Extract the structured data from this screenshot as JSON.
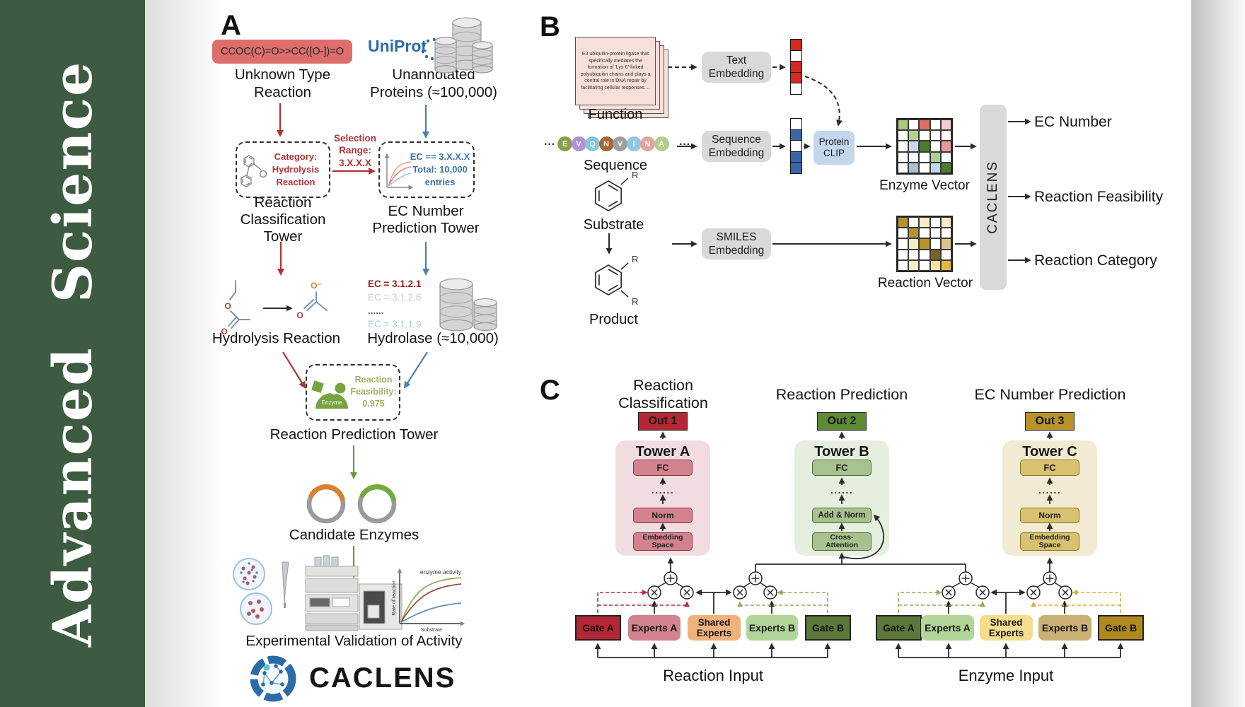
{
  "journal": {
    "name": "Advanced Science"
  },
  "colors": {
    "sidebar_green": "#3D5B41",
    "smiles_pill": "#DD6E6C",
    "uniprot_blue": "#2A6CA8",
    "accent_red": "#B03335",
    "accent_blue": "#4E7FAE",
    "accent_green": "#6E9444",
    "feasibility_green": "#9CB168",
    "gray_box": "#D9D9D9",
    "protein_clip_blue": "#C3D6EC"
  },
  "panel_a": {
    "label": "A",
    "smiles": "CCOC(C)=O>>CC([O-])=O",
    "unknown_reaction": "Unknown Type\nReaction",
    "uniprot": "UniProt",
    "unannotated": "Unannotated\nProteins (≈100,000)",
    "category_box": "Category:\nHydrolysis\nReaction",
    "selection_range": "Selection\nRange:\n3.X.X.X",
    "ec_box": "EC == 3.X.X.X\nTotal: 10,000\nentries",
    "classification_tower": "Reaction\nClassification Tower",
    "ec_tower": "EC Number\nPrediction Tower",
    "hydrolysis_reaction": "Hydrolysis Reaction",
    "ec_list": [
      {
        "text": "EC = 3.1.2.1",
        "color": "#9B1B1E",
        "bold": true
      },
      {
        "text": "EC = 3.1.2.6",
        "color": "#C9C9C9",
        "bold": false
      },
      {
        "text": "......",
        "color": "#5A5A5A",
        "bold": true
      },
      {
        "text": "EC = 3.1.1.9",
        "color": "#A9C9E4",
        "bold": false
      }
    ],
    "hydrolase": "Hydrolase (≈10,000)",
    "enzyme_icon_label": "Enzyme",
    "feasibility": "Reaction\nFeasibility:\n0.975",
    "prediction_tower": "Reaction Prediction Tower",
    "candidate_enzymes": "Candidate Enzymes",
    "activity_plot": {
      "title": "enzyme activity",
      "ylabel": "Rate of reaction",
      "xlabel": "Substrate"
    },
    "validation": "Experimental Validation of Activity",
    "logo_text": "CACLENS"
  },
  "panel_b": {
    "label": "B",
    "function_card": "E3 ubiquitin-protein ligase that specifically mediates the formation of 'Lys-6'-linked polyubiquitin chains and plays a central role in DNA repair by facilitating cellular responses....",
    "function_label": "Function",
    "ellipsis": "···",
    "residues": [
      {
        "letter": "E",
        "color": "#8F9E4D"
      },
      {
        "letter": "V",
        "color": "#B48FD9"
      },
      {
        "letter": "Q",
        "color": "#85C6DE"
      },
      {
        "letter": "N",
        "color": "#A9652C"
      },
      {
        "letter": "V",
        "color": "#9E9E9E"
      },
      {
        "letter": "I",
        "color": "#8FC8E0"
      },
      {
        "letter": "N",
        "color": "#E5A49B"
      },
      {
        "letter": "A",
        "color": "#B5CC8E"
      }
    ],
    "sequence_label": "Sequence",
    "substrate_label": "Substrate",
    "product_label": "Product",
    "r_label": "R",
    "text_embedding": "Text\nEmbedding",
    "sequence_embedding": "Sequence\nEmbedding",
    "smiles_embedding": "SMILES\nEmbedding",
    "protein_clip": "Protein\nCLIP",
    "text_vector_cells": [
      "#D42A20",
      "#FFFFFF",
      "#D42A20",
      "#D42A20",
      "#FFFFFF"
    ],
    "seq_vector_cells": [
      "#FFFFFF",
      "#3A66A8",
      "#FFFFFF",
      "#3A66A8",
      "#3A66A8"
    ],
    "enzyme_vector": {
      "label": "Enzyme Vector",
      "cells": [
        [
          "#A9C97E",
          "#FFFFFF",
          "#DD6E66",
          "#FFFFFF",
          "#F5CDD1"
        ],
        [
          "#FFFFFF",
          "#B5D08E",
          "#FFFFFF",
          "#FFFFFF",
          "#FFFFFF"
        ],
        [
          "#FFFFFF",
          "#C6D9EE",
          "#4E7A2E",
          "#FFFFFF",
          "#E89B94"
        ],
        [
          "#FFFFFF",
          "#FFFFFF",
          "#FFFFFF",
          "#A9D08E",
          "#FFFFFF"
        ],
        [
          "#FFFFFF",
          "#AEBFD4",
          "#FFFFFF",
          "#BDD7EE",
          "#4E7A2E"
        ]
      ]
    },
    "reaction_vector": {
      "label": "Reaction Vector",
      "cells": [
        [
          "#B8922A",
          "#FFFFFF",
          "#F5ECC8",
          "#FFFFFF",
          "#F5ECC8"
        ],
        [
          "#FFFFFF",
          "#B8922A",
          "#FFFFFF",
          "#FFFFFF",
          "#FFFFFF"
        ],
        [
          "#FFFFFF",
          "#F5ECC8",
          "#B8922A",
          "#FFFFFF",
          "#D9C48A"
        ],
        [
          "#FFFFFF",
          "#FFFFFF",
          "#FFFFFF",
          "#7A641E",
          "#FFFFFF"
        ],
        [
          "#FFFFFF",
          "#F5ECC8",
          "#FFFFFF",
          "#F5E3A0",
          "#E0B83F"
        ]
      ]
    },
    "caclens_bar": "CACLENS",
    "outputs": [
      "EC Number",
      "Reaction Feasibility",
      "Reaction Category"
    ]
  },
  "panel_c": {
    "label": "C",
    "column_titles": [
      "Reaction Classification",
      "Reaction Prediction",
      "EC Number Prediction"
    ],
    "outs": [
      {
        "label": "Out 1",
        "bg": "#B52735"
      },
      {
        "label": "Out 2",
        "bg": "#5C8A35"
      },
      {
        "label": "Out 3",
        "bg": "#B8922A"
      }
    ],
    "towers": [
      {
        "title": "Tower A",
        "bg": "#F1DDE1",
        "box_bg": "#D2838E",
        "box_border": "#843240",
        "fc": "FC",
        "dots": "......",
        "layer3": "Norm",
        "layer4": "Embedding\nSpace"
      },
      {
        "title": "Tower B",
        "bg": "#E6EEDF",
        "box_bg": "#A8C28E",
        "box_border": "#4F6B38",
        "fc": "FC",
        "dots": "......",
        "layer3": "Add & Norm",
        "layer4": "Cross-\nAttention"
      },
      {
        "title": "Tower C",
        "bg": "#F2EAD2",
        "box_bg": "#D8C16F",
        "box_border": "#8A7423",
        "fc": "FC",
        "dots": "......",
        "layer3": "Norm",
        "layer4": "Embedding\nSpace"
      }
    ],
    "reaction_group": {
      "input_label": "Reaction Input",
      "boxes": [
        {
          "label": "Gate A",
          "bg": "#B52735",
          "gate": true
        },
        {
          "label": "Experts A",
          "bg": "#D2838E",
          "gate": false
        },
        {
          "label": "Shared\nExperts",
          "bg": "#F0B27D",
          "gate": false
        },
        {
          "label": "Experts B",
          "bg": "#B2D69A",
          "gate": false
        },
        {
          "label": "Gate B",
          "bg": "#5B7A3A",
          "gate": true
        }
      ]
    },
    "enzyme_group": {
      "input_label": "Enzyme Input",
      "boxes": [
        {
          "label": "Gate A",
          "bg": "#5B7A3A",
          "gate": true
        },
        {
          "label": "Experts A",
          "bg": "#B2D69A",
          "gate": false
        },
        {
          "label": "Shared\nExperts",
          "bg": "#F5DD8E",
          "gate": false
        },
        {
          "label": "Experts B",
          "bg": "#C9B176",
          "gate": false
        },
        {
          "label": "Gate B",
          "bg": "#B08A1F",
          "gate": true
        }
      ]
    }
  }
}
